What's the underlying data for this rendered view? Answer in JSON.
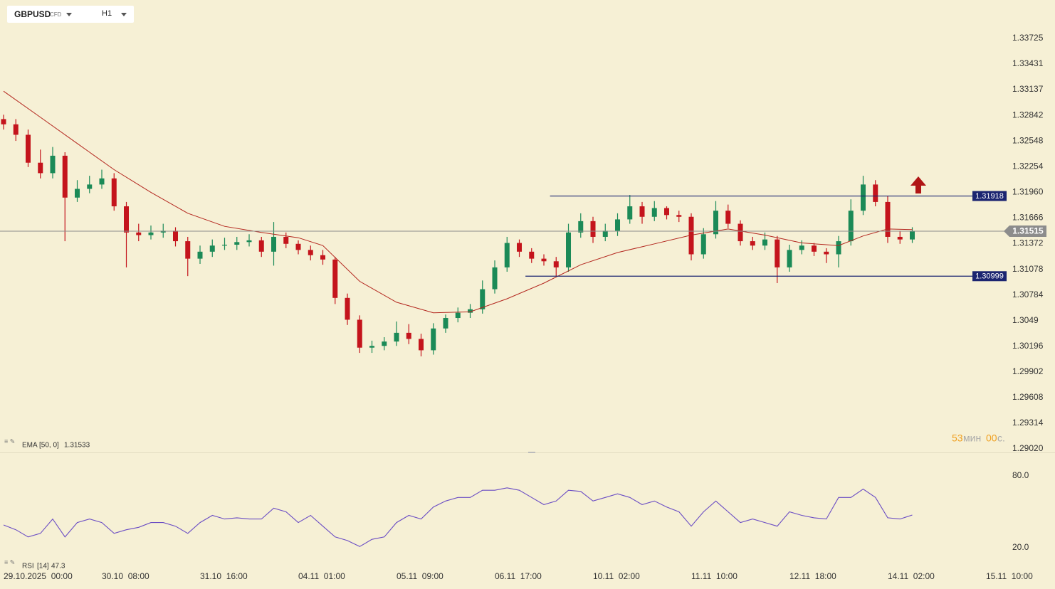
{
  "header": {
    "symbol": "GBPUSD",
    "instrument_type": "CFD",
    "timeframe": "H1"
  },
  "countdown": {
    "minutes": "53",
    "minutes_unit": "мин",
    "seconds": "00",
    "seconds_unit": "с."
  },
  "chart_data": [
    {
      "type": "candlestick",
      "x": [
        0,
        4,
        8,
        12,
        16,
        20,
        24,
        28,
        32,
        36,
        40,
        44,
        48,
        52,
        56,
        60,
        64,
        68,
        72,
        76,
        80,
        84,
        88,
        92,
        96,
        100,
        104,
        108,
        112,
        116,
        120,
        124,
        128,
        132,
        136,
        140,
        144,
        148,
        152,
        156,
        160,
        164,
        168,
        172,
        176,
        180,
        184,
        188,
        192,
        196,
        200,
        204,
        208,
        212,
        216,
        220,
        224,
        228,
        232,
        236,
        240,
        244,
        248,
        252,
        256,
        260,
        264,
        268,
        272,
        276,
        280,
        284,
        288,
        292,
        296
      ],
      "open": [
        1.328,
        1.3274,
        1.3262,
        1.323,
        1.3218,
        1.3238,
        1.319,
        1.32,
        1.3205,
        1.3212,
        1.318,
        1.315,
        1.3147,
        1.315,
        1.3152,
        1.314,
        1.312,
        1.3128,
        1.3135,
        1.3136,
        1.3139,
        1.3141,
        1.3128,
        1.3145,
        1.3137,
        1.313,
        1.3124,
        1.3119,
        1.3075,
        1.305,
        1.3018,
        1.302,
        1.3025,
        1.3035,
        1.3028,
        1.3015,
        1.304,
        1.3052,
        1.3058,
        1.3062,
        1.3085,
        1.311,
        1.3138,
        1.3128,
        1.312,
        1.3117,
        1.311,
        1.315,
        1.3163,
        1.3145,
        1.3152,
        1.3165,
        1.318,
        1.3168,
        1.3178,
        1.317,
        1.3168,
        1.3125,
        1.3148,
        1.3175,
        1.316,
        1.314,
        1.3135,
        1.3142,
        1.311,
        1.313,
        1.3135,
        1.3128,
        1.3125,
        1.314,
        1.3175,
        1.3205,
        1.3185,
        1.3145,
        1.3142
      ],
      "high": [
        1.3285,
        1.328,
        1.3268,
        1.3245,
        1.3248,
        1.3242,
        1.321,
        1.3215,
        1.3222,
        1.3218,
        1.3185,
        1.316,
        1.3158,
        1.316,
        1.3156,
        1.3145,
        1.3135,
        1.3142,
        1.3144,
        1.3145,
        1.3148,
        1.3145,
        1.3162,
        1.315,
        1.3141,
        1.3135,
        1.313,
        1.3122,
        1.308,
        1.3055,
        1.3026,
        1.303,
        1.3048,
        1.3045,
        1.3034,
        1.3046,
        1.3056,
        1.3064,
        1.3068,
        1.3095,
        1.3118,
        1.3145,
        1.3142,
        1.3132,
        1.3125,
        1.3122,
        1.316,
        1.3172,
        1.3168,
        1.316,
        1.3172,
        1.3193,
        1.3185,
        1.3186,
        1.318,
        1.3175,
        1.3172,
        1.3155,
        1.3186,
        1.3182,
        1.3164,
        1.3145,
        1.315,
        1.3146,
        1.3136,
        1.3141,
        1.3138,
        1.3132,
        1.3146,
        1.3188,
        1.3215,
        1.321,
        1.3192,
        1.3152,
        1.3156
      ],
      "low": [
        1.3268,
        1.3255,
        1.3225,
        1.3212,
        1.3212,
        1.314,
        1.3185,
        1.3195,
        1.32,
        1.3175,
        1.311,
        1.314,
        1.3142,
        1.3144,
        1.3134,
        1.31,
        1.3114,
        1.3122,
        1.313,
        1.313,
        1.3134,
        1.3122,
        1.3112,
        1.3132,
        1.3125,
        1.3118,
        1.3113,
        1.3068,
        1.3044,
        1.3012,
        1.3012,
        1.3015,
        1.302,
        1.3022,
        1.3008,
        1.301,
        1.3035,
        1.3047,
        1.3052,
        1.3057,
        1.308,
        1.3105,
        1.3122,
        1.3115,
        1.3112,
        1.31,
        1.3105,
        1.3144,
        1.3138,
        1.314,
        1.3146,
        1.316,
        1.316,
        1.3163,
        1.3165,
        1.3162,
        1.3118,
        1.312,
        1.3143,
        1.3155,
        1.3135,
        1.313,
        1.313,
        1.3092,
        1.3105,
        1.3125,
        1.3123,
        1.3115,
        1.311,
        1.3135,
        1.317,
        1.318,
        1.3138,
        1.3137,
        1.3138
      ],
      "close": [
        1.3274,
        1.3262,
        1.323,
        1.3218,
        1.3238,
        1.319,
        1.32,
        1.3205,
        1.3212,
        1.318,
        1.315,
        1.3147,
        1.315,
        1.3152,
        1.314,
        1.312,
        1.3128,
        1.3135,
        1.3136,
        1.3139,
        1.3141,
        1.3128,
        1.3145,
        1.3137,
        1.313,
        1.3124,
        1.3119,
        1.3075,
        1.305,
        1.3018,
        1.302,
        1.3025,
        1.3035,
        1.3028,
        1.3015,
        1.304,
        1.3052,
        1.3058,
        1.3062,
        1.3085,
        1.311,
        1.3138,
        1.3128,
        1.312,
        1.3117,
        1.311,
        1.315,
        1.3163,
        1.3145,
        1.3152,
        1.3165,
        1.318,
        1.3168,
        1.3178,
        1.317,
        1.3168,
        1.3125,
        1.3148,
        1.3175,
        1.316,
        1.314,
        1.3135,
        1.3142,
        1.311,
        1.313,
        1.3135,
        1.3128,
        1.3125,
        1.314,
        1.3175,
        1.3205,
        1.3185,
        1.3145,
        1.3142,
        1.31515
      ],
      "up_color": "#1b8a57",
      "down_color": "#c4141c",
      "price_line_color": "#8c8c8c",
      "xlim": [
        -1.16,
        326.49
      ],
      "ylim": [
        1.28979,
        1.34165
      ],
      "yticks": [
        1.33725,
        1.33431,
        1.33137,
        1.32842,
        1.32548,
        1.32254,
        {
          "value": 1.3196,
          "label": "1.31960"
        },
        1.31666,
        1.31372,
        1.31078,
        1.30784,
        1.3049,
        1.30196,
        1.29902,
        1.29608,
        1.29314,
        {
          "value": 1.2902,
          "label": "1.29020"
        }
      ],
      "xticks": [
        {
          "value": 0,
          "label": "29.10.2025  00:00"
        },
        {
          "value": 32,
          "label": "30.10  08:00"
        },
        {
          "value": 64,
          "label": "31.10  16:00"
        },
        {
          "value": 96,
          "label": "04.11  01:00"
        },
        {
          "value": 128,
          "label": "05.11  09:00"
        },
        {
          "value": 160,
          "label": "06.11  17:00"
        },
        {
          "value": 192,
          "label": "10.11  02:00"
        },
        {
          "value": 224,
          "label": "11.11  10:00"
        },
        {
          "value": 256,
          "label": "12.11  18:00"
        },
        {
          "value": 288,
          "label": "14.11  02:00"
        },
        {
          "value": 320,
          "label": "15.11  10:00"
        }
      ],
      "overlay": {
        "name": "EMA",
        "params": "[50, 0]",
        "color": "#b3261e",
        "x": [
          0,
          12,
          24,
          36,
          48,
          60,
          72,
          84,
          96,
          104,
          116,
          128,
          140,
          152,
          164,
          176,
          188,
          200,
          212,
          224,
          236,
          248,
          260,
          272,
          280,
          288,
          296
        ],
        "values": [
          1.3312,
          1.3282,
          1.3252,
          1.3222,
          1.3196,
          1.3172,
          1.3157,
          1.315,
          1.3144,
          1.3135,
          1.3094,
          1.307,
          1.3058,
          1.3059,
          1.3074,
          1.3092,
          1.3113,
          1.3127,
          1.3137,
          1.3147,
          1.3154,
          1.3147,
          1.3138,
          1.3135,
          1.3146,
          1.3154,
          1.31533
        ]
      },
      "levels": [
        {
          "value": 1.31918,
          "x_start": 178,
          "color": "#1b2470"
        },
        {
          "value": 1.30999,
          "x_start": 170,
          "color": "#1b2470"
        }
      ]
    },
    {
      "type": "line",
      "name": "RSI",
      "params": "[14]",
      "color": "#6a4cc4",
      "x": [
        0,
        4,
        8,
        12,
        16,
        20,
        24,
        28,
        32,
        36,
        40,
        44,
        48,
        52,
        56,
        60,
        64,
        68,
        72,
        76,
        80,
        84,
        88,
        92,
        96,
        100,
        104,
        108,
        112,
        116,
        120,
        124,
        128,
        132,
        136,
        140,
        144,
        148,
        152,
        156,
        160,
        164,
        168,
        172,
        176,
        180,
        184,
        188,
        192,
        196,
        200,
        204,
        208,
        212,
        216,
        220,
        224,
        228,
        232,
        236,
        240,
        244,
        248,
        252,
        256,
        260,
        264,
        268,
        272,
        276,
        280,
        284,
        288,
        292,
        296
      ],
      "values": [
        39,
        35,
        29,
        32,
        44,
        29,
        41,
        44,
        41,
        32,
        35,
        37,
        41,
        41,
        38,
        32,
        41,
        47,
        44,
        45,
        44,
        44,
        53,
        50,
        41,
        47,
        38,
        29,
        26,
        21,
        27,
        29,
        41,
        47,
        44,
        54,
        59,
        62,
        62,
        68,
        68,
        70,
        68,
        62,
        56,
        59,
        68,
        67,
        59,
        62,
        65,
        62,
        56,
        59,
        54,
        50,
        38,
        50,
        59,
        50,
        41,
        44,
        41,
        38,
        50,
        47,
        45,
        44,
        62,
        62,
        69,
        62,
        45,
        44,
        47.3
      ],
      "xlim": [
        -1.16,
        326.49
      ],
      "ylim": [
        8.1,
        97.2
      ],
      "yticks": [
        {
          "value": 80,
          "label": "80.0"
        },
        {
          "value": 20,
          "label": "20.0"
        }
      ]
    }
  ]
}
